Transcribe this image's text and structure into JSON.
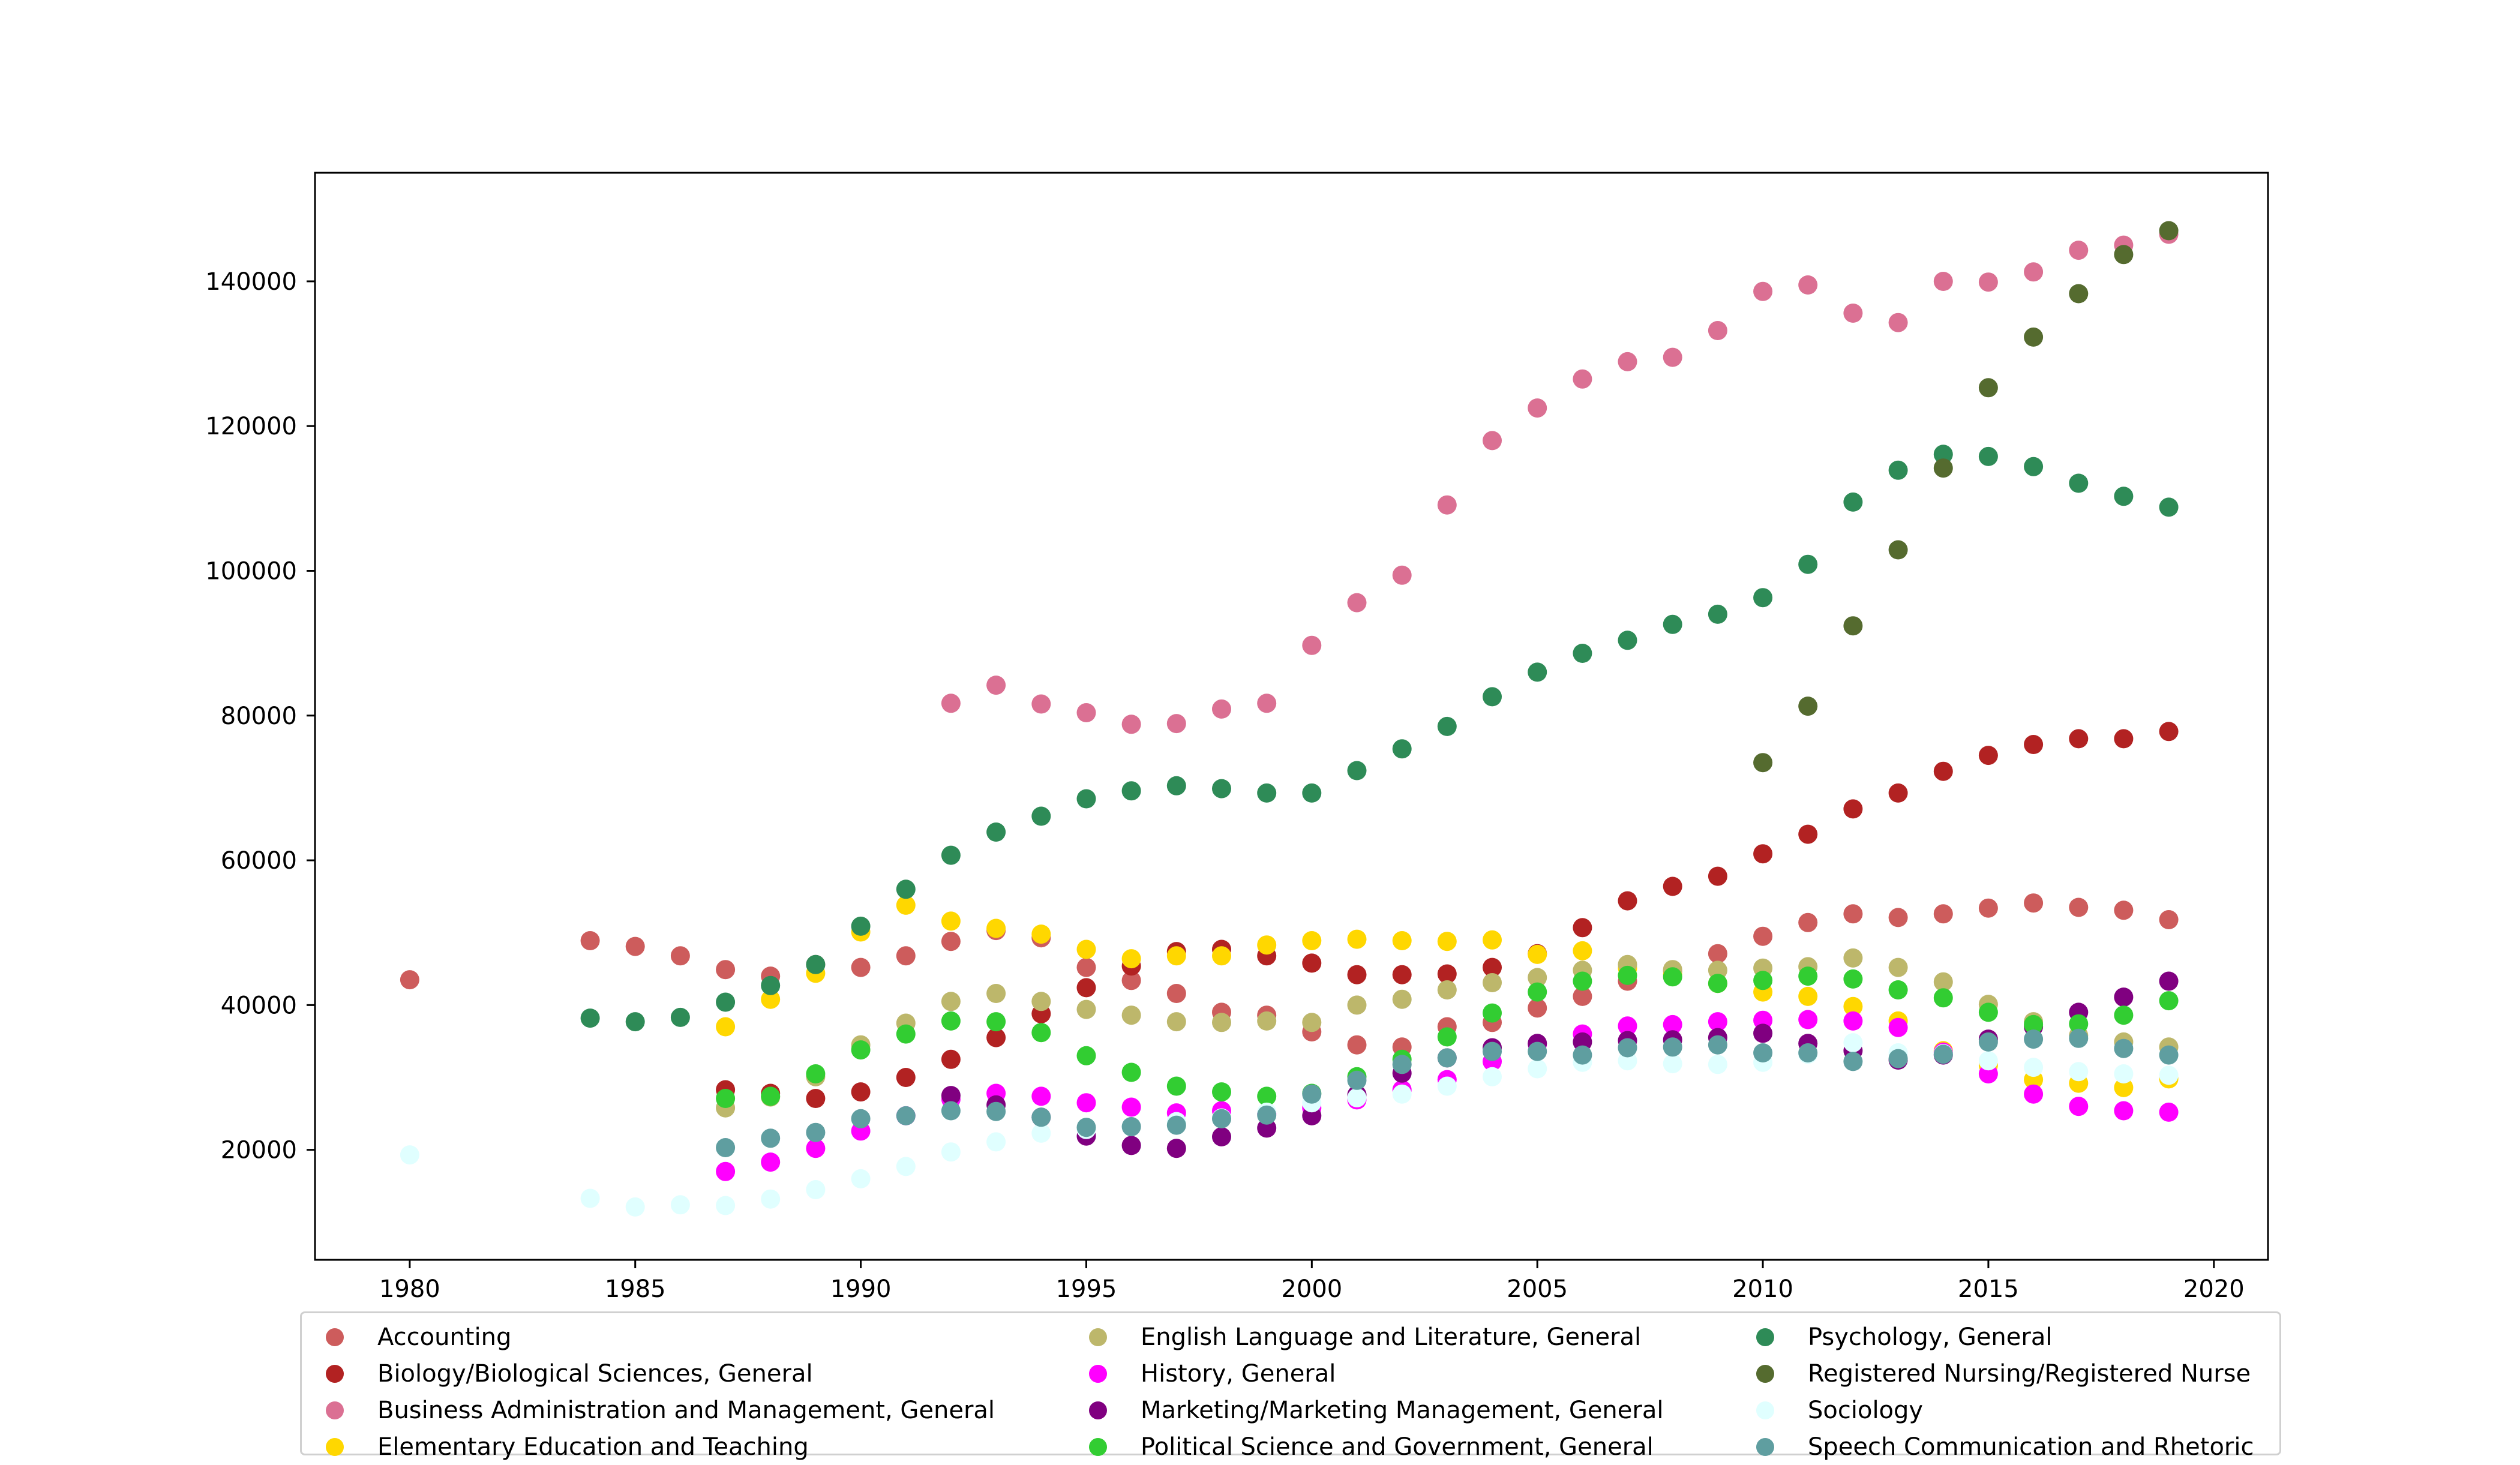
{
  "chart_data": {
    "type": "scatter",
    "title": "",
    "xlabel": "",
    "ylabel": "",
    "xlim": [
      1977.9,
      2021.2
    ],
    "ylim": [
      4800,
      155000
    ],
    "x_ticks": [
      1980,
      1985,
      1990,
      1995,
      2000,
      2005,
      2010,
      2015,
      2020
    ],
    "y_ticks": [
      20000,
      40000,
      60000,
      80000,
      100000,
      120000,
      140000
    ],
    "grid": false,
    "legend_position": "bottom",
    "series": [
      {
        "name": "Accounting",
        "color": "#cd5c5c",
        "x": [
          1980,
          1984,
          1985,
          1986,
          1987,
          1988,
          1989,
          1990,
          1991,
          1992,
          1993,
          1994,
          1995,
          1996,
          1997,
          1998,
          1999,
          2000,
          2001,
          2002,
          2003,
          2004,
          2005,
          2006,
          2007,
          2008,
          2009,
          2010,
          2011,
          2012,
          2013,
          2014,
          2015,
          2016,
          2017,
          2018,
          2019
        ],
        "y": [
          43500,
          48900,
          48100,
          46800,
          44900,
          44000,
          45600,
          45200,
          46800,
          48800,
          50300,
          49300,
          45200,
          43400,
          41600,
          39000,
          38600,
          36300,
          34500,
          34200,
          37000,
          37600,
          39600,
          41200,
          43300,
          44700,
          47100,
          49500,
          51400,
          52600,
          52100,
          52600,
          53400,
          54100,
          53500,
          53100,
          51800
        ]
      },
      {
        "name": "Biology/Biological Sciences, General",
        "color": "#b22222",
        "x": [
          1987,
          1988,
          1989,
          1990,
          1991,
          1992,
          1993,
          1994,
          1995,
          1996,
          1997,
          1998,
          1999,
          2000,
          2001,
          2002,
          2003,
          2004,
          2005,
          2006,
          2007,
          2008,
          2009,
          2010,
          2011,
          2012,
          2013,
          2014,
          2015,
          2016,
          2017,
          2018,
          2019
        ],
        "y": [
          28300,
          27800,
          27100,
          28000,
          30000,
          32500,
          35500,
          38800,
          42400,
          45400,
          47400,
          47700,
          46800,
          45800,
          44200,
          44200,
          44300,
          45200,
          47100,
          50700,
          54400,
          56400,
          57800,
          60900,
          63600,
          67100,
          69300,
          72300,
          74500,
          76000,
          76800,
          76800,
          77800
        ]
      },
      {
        "name": "Business Administration and Management, General",
        "color": "#db7093",
        "x": [
          1992,
          1993,
          1994,
          1995,
          1996,
          1997,
          1998,
          1999,
          2000,
          2001,
          2002,
          2003,
          2004,
          2005,
          2006,
          2007,
          2008,
          2009,
          2010,
          2011,
          2012,
          2013,
          2014,
          2015,
          2016,
          2017,
          2018,
          2019
        ],
        "y": [
          81700,
          84200,
          81600,
          80400,
          78800,
          78900,
          80900,
          81700,
          89700,
          95600,
          99400,
          109100,
          118000,
          122500,
          126500,
          128900,
          129500,
          133200,
          138600,
          139500,
          135600,
          134300,
          140000,
          139900,
          141300,
          144300,
          145000,
          146500
        ]
      },
      {
        "name": "Elementary Education and Teaching",
        "color": "#ffd700",
        "x": [
          1987,
          1988,
          1989,
          1990,
          1991,
          1992,
          1993,
          1994,
          1995,
          1996,
          1997,
          1998,
          1999,
          2000,
          2001,
          2002,
          2003,
          2004,
          2005,
          2006,
          2007,
          2008,
          2009,
          2010,
          2011,
          2012,
          2013,
          2014,
          2015,
          2016,
          2017,
          2018,
          2019
        ],
        "y": [
          37000,
          40800,
          44400,
          50100,
          53800,
          51600,
          50600,
          49800,
          47700,
          46400,
          46800,
          46800,
          48300,
          48900,
          49100,
          48900,
          48800,
          49000,
          47000,
          47500,
          45100,
          44200,
          43000,
          41800,
          41200,
          39800,
          37800,
          33700,
          31700,
          29700,
          29200,
          28600,
          29800
        ]
      },
      {
        "name": "English Language and Literature, General",
        "color": "#bdb76b",
        "x": [
          1987,
          1988,
          1989,
          1990,
          1991,
          1992,
          1993,
          1994,
          1995,
          1996,
          1997,
          1998,
          1999,
          2000,
          2001,
          2002,
          2003,
          2004,
          2005,
          2006,
          2007,
          2008,
          2009,
          2010,
          2011,
          2012,
          2013,
          2014,
          2015,
          2016,
          2017,
          2018,
          2019
        ],
        "y": [
          25800,
          27300,
          30100,
          34500,
          37500,
          40500,
          41600,
          40500,
          39400,
          38600,
          37700,
          37600,
          37800,
          37600,
          40000,
          40800,
          42100,
          43100,
          43800,
          44800,
          45600,
          44900,
          44800,
          45100,
          45300,
          46500,
          45200,
          43200,
          40100,
          37700,
          35800,
          34900,
          34200
        ]
      },
      {
        "name": "History, General",
        "color": "#ff00ff",
        "x": [
          1987,
          1988,
          1989,
          1990,
          1991,
          1992,
          1993,
          1994,
          1995,
          1996,
          1997,
          1998,
          1999,
          2000,
          2001,
          2002,
          2003,
          2004,
          2005,
          2006,
          2007,
          2008,
          2009,
          2010,
          2011,
          2012,
          2013,
          2014,
          2015,
          2016,
          2017,
          2018,
          2019
        ],
        "y": [
          17000,
          18300,
          20200,
          22600,
          24700,
          27000,
          27800,
          27400,
          26500,
          25900,
          25100,
          25400,
          25000,
          25800,
          26900,
          28300,
          29700,
          32200,
          34600,
          36000,
          37100,
          37300,
          37700,
          37900,
          38000,
          37800,
          36900,
          33500,
          30500,
          27700,
          26000,
          25400,
          25200
        ]
      },
      {
        "name": "Marketing/Marketing Management, General",
        "color": "#800080",
        "x": [
          1992,
          1993,
          1994,
          1995,
          1996,
          1997,
          1998,
          1999,
          2000,
          2001,
          2002,
          2003,
          2004,
          2005,
          2006,
          2007,
          2008,
          2009,
          2010,
          2011,
          2012,
          2013,
          2014,
          2015,
          2016,
          2017,
          2018,
          2019
        ],
        "y": [
          27500,
          26200,
          24500,
          21900,
          20600,
          20200,
          21800,
          23000,
          24700,
          27600,
          30600,
          32700,
          34100,
          34700,
          34900,
          35100,
          35200,
          35500,
          36100,
          34700,
          33700,
          32400,
          33100,
          35300,
          37000,
          39000,
          41100,
          43300
        ]
      },
      {
        "name": "Political Science and Government, General",
        "color": "#32cd32",
        "x": [
          1987,
          1988,
          1989,
          1990,
          1991,
          1992,
          1993,
          1994,
          1995,
          1996,
          1997,
          1998,
          1999,
          2000,
          2001,
          2002,
          2003,
          2004,
          2005,
          2006,
          2007,
          2008,
          2009,
          2010,
          2011,
          2012,
          2013,
          2014,
          2015,
          2016,
          2017,
          2018,
          2019
        ],
        "y": [
          27100,
          27400,
          30500,
          33800,
          36000,
          37800,
          37700,
          36200,
          33000,
          30700,
          28800,
          28000,
          27400,
          27800,
          30100,
          32500,
          35600,
          38900,
          41800,
          43300,
          44100,
          43900,
          43000,
          43400,
          44000,
          43600,
          42100,
          41000,
          39000,
          37300,
          37400,
          38600,
          40600
        ]
      },
      {
        "name": "Psychology, General",
        "color": "#2e8b57",
        "x": [
          1984,
          1985,
          1986,
          1987,
          1988,
          1989,
          1990,
          1991,
          1992,
          1993,
          1994,
          1995,
          1996,
          1997,
          1998,
          1999,
          2000,
          2001,
          2002,
          2003,
          2004,
          2005,
          2006,
          2007,
          2008,
          2009,
          2010,
          2011,
          2012,
          2013,
          2014,
          2015,
          2016,
          2017,
          2018,
          2019
        ],
        "y": [
          38200,
          37700,
          38300,
          40400,
          42700,
          45600,
          50900,
          56000,
          60700,
          63900,
          66100,
          68500,
          69600,
          70300,
          69900,
          69300,
          69300,
          72400,
          75400,
          78500,
          82600,
          86000,
          88600,
          90400,
          92600,
          94000,
          96300,
          100900,
          109500,
          113900,
          116100,
          115800,
          114400,
          112100,
          110300,
          108800
        ]
      },
      {
        "name": "Registered Nursing/Registered Nurse",
        "color": "#556b2f",
        "x": [
          2010,
          2011,
          2012,
          2013,
          2014,
          2015,
          2016,
          2017,
          2018,
          2019
        ],
        "y": [
          73500,
          81300,
          92400,
          102900,
          114200,
          125300,
          132300,
          138300,
          143700,
          147000
        ]
      },
      {
        "name": "Sociology",
        "color": "#e0ffff",
        "x": [
          1980,
          1984,
          1985,
          1986,
          1987,
          1988,
          1989,
          1990,
          1991,
          1992,
          1993,
          1994,
          1995,
          1996,
          1997,
          1998,
          1999,
          2000,
          2001,
          2002,
          2003,
          2004,
          2005,
          2006,
          2007,
          2008,
          2009,
          2010,
          2011,
          2012,
          2013,
          2014,
          2015,
          2016,
          2017,
          2018,
          2019
        ],
        "y": [
          19300,
          13300,
          12100,
          12400,
          12300,
          13200,
          14500,
          16000,
          17700,
          19700,
          21100,
          22300,
          22800,
          23200,
          23900,
          24400,
          25200,
          26500,
          27200,
          27700,
          28800,
          30100,
          31200,
          32100,
          32300,
          31900,
          31800,
          32100,
          33200,
          34800,
          33400,
          33300,
          32300,
          31400,
          30800,
          30500,
          30300
        ]
      },
      {
        "name": "Speech Communication and Rhetoric",
        "color": "#5f9ea0",
        "x": [
          1987,
          1988,
          1989,
          1990,
          1991,
          1992,
          1993,
          1994,
          1995,
          1996,
          1997,
          1998,
          1999,
          2000,
          2001,
          2002,
          2003,
          2004,
          2005,
          2006,
          2007,
          2008,
          2009,
          2010,
          2011,
          2012,
          2013,
          2014,
          2015,
          2016,
          2017,
          2018,
          2019
        ],
        "y": [
          20300,
          21600,
          22400,
          24300,
          24700,
          25400,
          25300,
          24500,
          23100,
          23200,
          23400,
          24300,
          24800,
          27700,
          29600,
          31800,
          32700,
          33600,
          33600,
          33100,
          34100,
          34200,
          34500,
          33400,
          33400,
          32200,
          32600,
          33200,
          34900,
          35300,
          35400,
          34000,
          33100
        ]
      }
    ]
  }
}
